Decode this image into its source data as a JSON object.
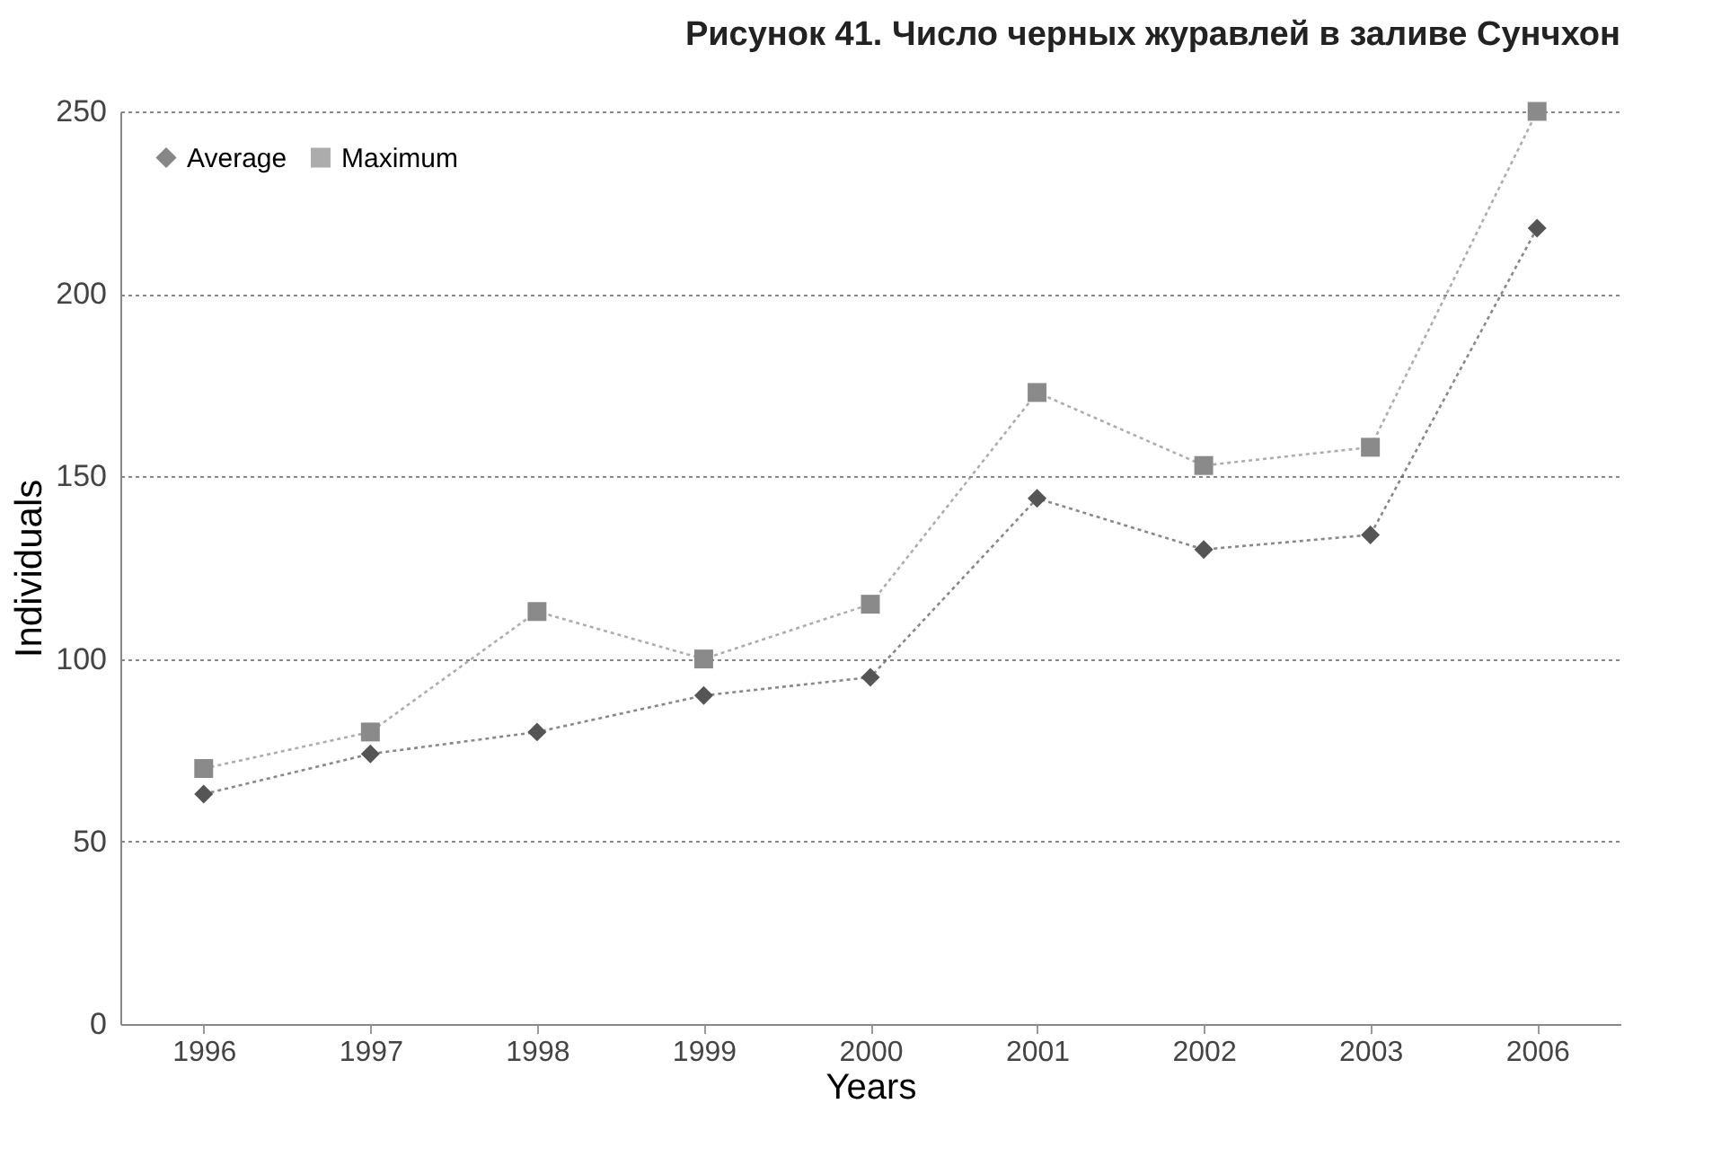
{
  "chart_data": {
    "type": "line",
    "title": "Рисунок 41. Число черных журавлей в заливе Сунчхон",
    "xlabel": "Years",
    "ylabel": "Individuals",
    "categories": [
      "1996",
      "1997",
      "1998",
      "1999",
      "2000",
      "2001",
      "2002",
      "2003",
      "2006"
    ],
    "series": [
      {
        "name": "Average",
        "color": "#555555",
        "marker": "diamond",
        "values": [
          63,
          74,
          80,
          90,
          95,
          144,
          130,
          134,
          218
        ]
      },
      {
        "name": "Maximum",
        "color": "#8a8a8a",
        "marker": "square",
        "values": [
          70,
          80,
          113,
          100,
          115,
          173,
          153,
          158,
          250
        ]
      }
    ],
    "ylim": [
      0,
      250
    ],
    "yticks": [
      0,
      50,
      100,
      150,
      200,
      250
    ],
    "grid": "y",
    "legend": "top left",
    "line_style": "dotted"
  }
}
